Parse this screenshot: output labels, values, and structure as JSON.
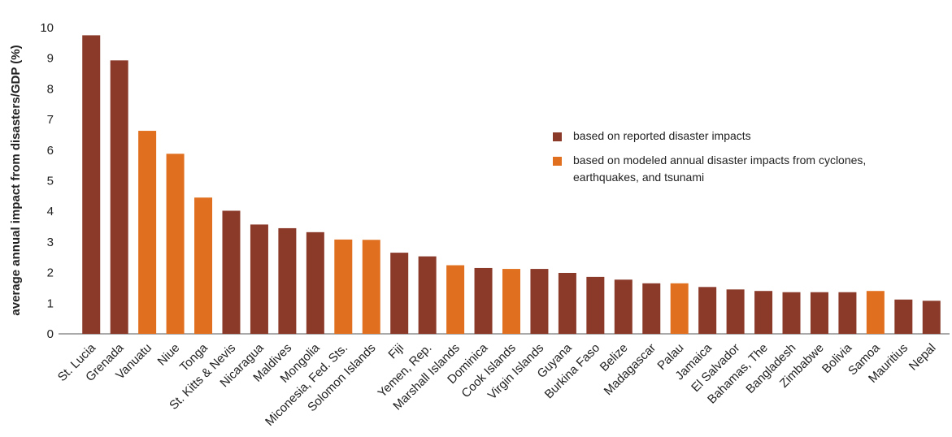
{
  "chart_data": {
    "type": "bar",
    "ylabel": "average annual impact from disasters/GDP (%)",
    "categories": [
      "St. Lucia",
      "Grenada",
      "Vanuatu",
      "Niue",
      "Tonga",
      "St. Kitts & Nevis",
      "Nicaragua",
      "Maldives",
      "Mongolia",
      "Miconesia, Fed. Sts.",
      "Solomon Islands",
      "Fiji",
      "Yemen, Rep.",
      "Marshall Islands",
      "Dominica",
      "Cook Islands",
      "Virgin Islands",
      "Guyana",
      "Burkina Faso",
      "Belize",
      "Madagascar",
      "Palau",
      "Jamaica",
      "El Salvador",
      "Bahamas, The",
      "Bangladesh",
      "Zimbabwe",
      "Bolivia",
      "Samoa",
      "Mauritius",
      "Nepal"
    ],
    "series": [
      {
        "name": "based on reported disaster impacts",
        "color": "#8b3a2a",
        "values": [
          9.75,
          8.93,
          null,
          null,
          null,
          4.02,
          3.57,
          3.45,
          3.32,
          null,
          null,
          2.65,
          2.53,
          null,
          2.15,
          null,
          2.12,
          1.99,
          1.86,
          1.77,
          1.65,
          null,
          1.53,
          1.45,
          1.4,
          1.36,
          1.36,
          1.36,
          null,
          1.12,
          1.08
        ]
      },
      {
        "name": "based on modeled annual disaster impacts from cyclones, earthquakes, and tsunami",
        "color": "#e07020",
        "values": [
          null,
          null,
          6.63,
          5.88,
          4.45,
          null,
          null,
          null,
          null,
          3.08,
          3.07,
          null,
          null,
          2.24,
          null,
          2.12,
          null,
          null,
          null,
          null,
          null,
          1.65,
          null,
          null,
          null,
          null,
          null,
          null,
          1.4,
          null,
          null
        ]
      }
    ],
    "ylim": [
      0,
      10
    ],
    "yticks": [
      0,
      1,
      2,
      3,
      4,
      5,
      6,
      7,
      8,
      9,
      10
    ],
    "grid": false,
    "legend": "upper right"
  }
}
